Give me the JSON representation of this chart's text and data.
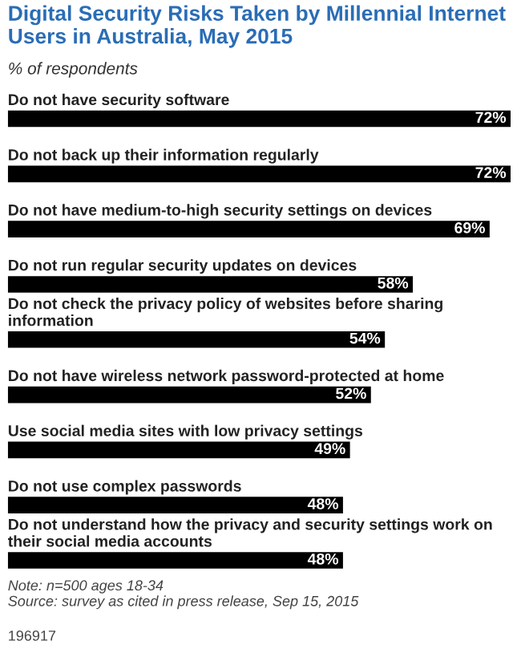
{
  "chart_data": {
    "type": "bar",
    "orientation": "horizontal",
    "title": "Digital Security Risks Taken by Millennial Internet Users in Australia, May 2015",
    "subtitle": "% of respondents",
    "categories": [
      "Do not have security software",
      "Do not back up their information regularly",
      "Do not have medium-to-high security settings on devices",
      "Do not run regular security updates on devices",
      "Do not check the privacy policy of websites before sharing information",
      "Do not have wireless network password-protected at home",
      "Use social media sites with low privacy settings",
      "Do not use complex passwords",
      "Do not understand how the privacy and security settings work on their social media accounts"
    ],
    "values": [
      72,
      72,
      69,
      58,
      54,
      52,
      49,
      48,
      48
    ],
    "value_labels": [
      "72%",
      "72%",
      "69%",
      "58%",
      "54%",
      "52%",
      "49%",
      "48%",
      "48%"
    ],
    "color": "#000000",
    "annotations": [
      "Note: n=500 ages 18-34",
      "Source: survey as cited in press release, Sep 15, 2015",
      "196917"
    ]
  }
}
